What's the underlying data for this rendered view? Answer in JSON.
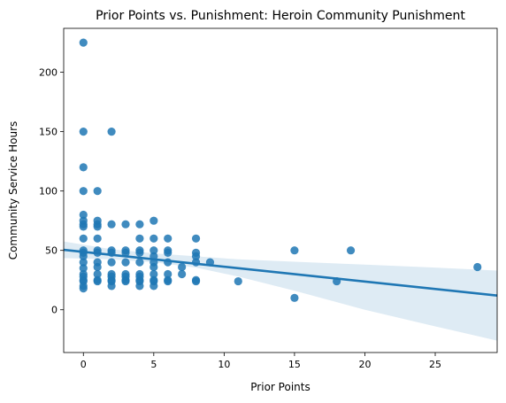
{
  "chart_data": {
    "type": "scatter",
    "title": "Prior Points vs. Punishment: Heroin Community Punishment",
    "xlabel": "Prior Points",
    "ylabel": "Community Service Hours",
    "xlim": [
      -1.4,
      29.4
    ],
    "ylim": [
      -36,
      237
    ],
    "xticks": [
      0,
      5,
      10,
      15,
      20,
      25
    ],
    "yticks": [
      0,
      50,
      100,
      150,
      200
    ],
    "grid": false,
    "legend": "none",
    "colors": {
      "points": "#1f77b4",
      "line": "#1f77b4",
      "ci_band": "#1f77b4"
    },
    "points": [
      {
        "x": 0,
        "y": 225
      },
      {
        "x": 0,
        "y": 150
      },
      {
        "x": 0,
        "y": 120
      },
      {
        "x": 0,
        "y": 100
      },
      {
        "x": 0,
        "y": 80
      },
      {
        "x": 0,
        "y": 75
      },
      {
        "x": 0,
        "y": 72
      },
      {
        "x": 0,
        "y": 70
      },
      {
        "x": 0,
        "y": 60
      },
      {
        "x": 0,
        "y": 50
      },
      {
        "x": 0,
        "y": 48
      },
      {
        "x": 0,
        "y": 45
      },
      {
        "x": 0,
        "y": 40
      },
      {
        "x": 0,
        "y": 35
      },
      {
        "x": 0,
        "y": 30
      },
      {
        "x": 0,
        "y": 28
      },
      {
        "x": 0,
        "y": 25
      },
      {
        "x": 0,
        "y": 24
      },
      {
        "x": 0,
        "y": 20
      },
      {
        "x": 0,
        "y": 18
      },
      {
        "x": 1,
        "y": 100
      },
      {
        "x": 1,
        "y": 75
      },
      {
        "x": 1,
        "y": 72
      },
      {
        "x": 1,
        "y": 70
      },
      {
        "x": 1,
        "y": 60
      },
      {
        "x": 1,
        "y": 50
      },
      {
        "x": 1,
        "y": 48
      },
      {
        "x": 1,
        "y": 40
      },
      {
        "x": 1,
        "y": 36
      },
      {
        "x": 1,
        "y": 30
      },
      {
        "x": 1,
        "y": 25
      },
      {
        "x": 1,
        "y": 24
      },
      {
        "x": 2,
        "y": 150
      },
      {
        "x": 2,
        "y": 72
      },
      {
        "x": 2,
        "y": 50
      },
      {
        "x": 2,
        "y": 48
      },
      {
        "x": 2,
        "y": 40
      },
      {
        "x": 2,
        "y": 30
      },
      {
        "x": 2,
        "y": 28
      },
      {
        "x": 2,
        "y": 25
      },
      {
        "x": 2,
        "y": 24
      },
      {
        "x": 2,
        "y": 20
      },
      {
        "x": 3,
        "y": 72
      },
      {
        "x": 3,
        "y": 50
      },
      {
        "x": 3,
        "y": 48
      },
      {
        "x": 3,
        "y": 40
      },
      {
        "x": 3,
        "y": 30
      },
      {
        "x": 3,
        "y": 28
      },
      {
        "x": 3,
        "y": 25
      },
      {
        "x": 3,
        "y": 24
      },
      {
        "x": 4,
        "y": 72
      },
      {
        "x": 4,
        "y": 60
      },
      {
        "x": 4,
        "y": 50
      },
      {
        "x": 4,
        "y": 48
      },
      {
        "x": 4,
        "y": 40
      },
      {
        "x": 4,
        "y": 30
      },
      {
        "x": 4,
        "y": 28
      },
      {
        "x": 4,
        "y": 25
      },
      {
        "x": 4,
        "y": 24
      },
      {
        "x": 4,
        "y": 20
      },
      {
        "x": 5,
        "y": 75
      },
      {
        "x": 5,
        "y": 60
      },
      {
        "x": 5,
        "y": 50
      },
      {
        "x": 5,
        "y": 45
      },
      {
        "x": 5,
        "y": 40
      },
      {
        "x": 5,
        "y": 36
      },
      {
        "x": 5,
        "y": 30
      },
      {
        "x": 5,
        "y": 25
      },
      {
        "x": 5,
        "y": 24
      },
      {
        "x": 5,
        "y": 20
      },
      {
        "x": 6,
        "y": 60
      },
      {
        "x": 6,
        "y": 50
      },
      {
        "x": 6,
        "y": 48
      },
      {
        "x": 6,
        "y": 40
      },
      {
        "x": 6,
        "y": 30
      },
      {
        "x": 6,
        "y": 25
      },
      {
        "x": 6,
        "y": 24
      },
      {
        "x": 7,
        "y": 36
      },
      {
        "x": 7,
        "y": 30
      },
      {
        "x": 8,
        "y": 60
      },
      {
        "x": 8,
        "y": 48
      },
      {
        "x": 8,
        "y": 45
      },
      {
        "x": 8,
        "y": 40
      },
      {
        "x": 8,
        "y": 25
      },
      {
        "x": 8,
        "y": 24
      },
      {
        "x": 9,
        "y": 40
      },
      {
        "x": 11,
        "y": 24
      },
      {
        "x": 15,
        "y": 50
      },
      {
        "x": 15,
        "y": 10
      },
      {
        "x": 18,
        "y": 24
      },
      {
        "x": 19,
        "y": 50
      },
      {
        "x": 28,
        "y": 36
      }
    ],
    "regression": {
      "x": [
        -1.4,
        29.4
      ],
      "y": [
        50.5,
        12.0
      ]
    },
    "ci_band": {
      "x": [
        -1.4,
        2,
        5,
        8,
        11,
        15,
        20,
        25,
        29.4
      ],
      "lower": [
        43.5,
        42.5,
        40.0,
        35.5,
        28.0,
        16.0,
        0.0,
        -14.0,
        -26.0
      ],
      "upper": [
        57.5,
        51.0,
        47.5,
        45.0,
        42.5,
        40.5,
        38.0,
        35.5,
        33.0
      ]
    }
  }
}
